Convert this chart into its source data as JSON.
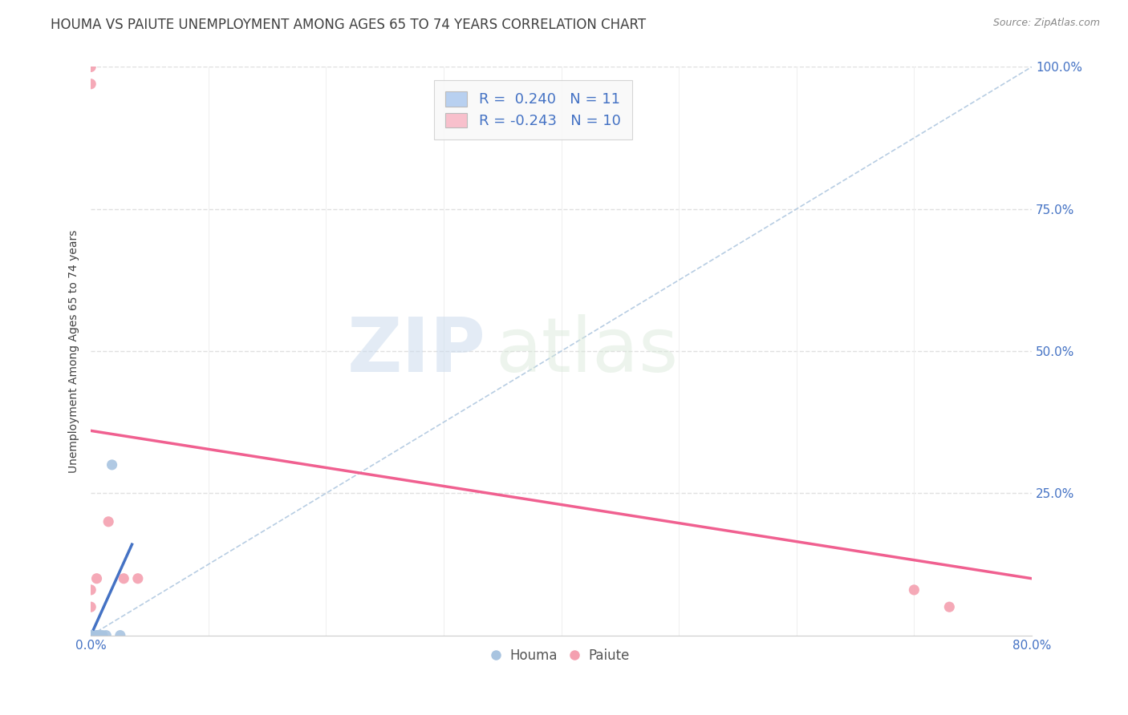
{
  "title": "HOUMA VS PAIUTE UNEMPLOYMENT AMONG AGES 65 TO 74 YEARS CORRELATION CHART",
  "source": "Source: ZipAtlas.com",
  "ylabel": "Unemployment Among Ages 65 to 74 years",
  "xlim": [
    0.0,
    0.8
  ],
  "ylim": [
    0.0,
    1.0
  ],
  "houma_color": "#a8c4e0",
  "paiute_color": "#f4a0b0",
  "houma_line_color": "#4472c4",
  "paiute_line_color": "#f06090",
  "ref_line_color": "#b0c8e0",
  "houma_R": 0.24,
  "houma_N": 11,
  "paiute_R": -0.243,
  "paiute_N": 10,
  "houma_points_x": [
    0.0,
    0.0,
    0.0,
    0.0,
    0.005,
    0.005,
    0.008,
    0.01,
    0.013,
    0.018,
    0.025
  ],
  "houma_points_y": [
    0.0,
    0.0,
    0.0,
    0.0,
    0.0,
    0.0,
    0.0,
    0.0,
    0.0,
    0.3,
    0.0
  ],
  "paiute_points_x": [
    0.0,
    0.0,
    0.0,
    0.0,
    0.005,
    0.015,
    0.028,
    0.04,
    0.7,
    0.73
  ],
  "paiute_points_y": [
    0.97,
    1.0,
    0.05,
    0.08,
    0.1,
    0.2,
    0.1,
    0.1,
    0.08,
    0.05
  ],
  "houma_trend_x": [
    0.0,
    0.035
  ],
  "houma_trend_y": [
    0.0,
    0.16
  ],
  "paiute_trend_x": [
    0.0,
    0.8
  ],
  "paiute_trend_y": [
    0.36,
    0.1
  ],
  "ref_line_x": [
    0.0,
    0.8
  ],
  "ref_line_y": [
    0.0,
    1.0
  ],
  "legend_box_color": "#f8f8f8",
  "houma_legend_color": "#b8d0f0",
  "paiute_legend_color": "#f8c0cc",
  "watermark_zip": "ZIP",
  "watermark_atlas": "atlas",
  "background_color": "#ffffff",
  "grid_h_color": "#e0e0e0",
  "tick_color": "#4472c4",
  "title_color": "#404040",
  "source_color": "#888888",
  "ylabel_color": "#404040",
  "title_fontsize": 12,
  "source_fontsize": 9,
  "axis_label_fontsize": 10,
  "tick_fontsize": 11,
  "legend_fontsize": 13,
  "marker_size": 90
}
